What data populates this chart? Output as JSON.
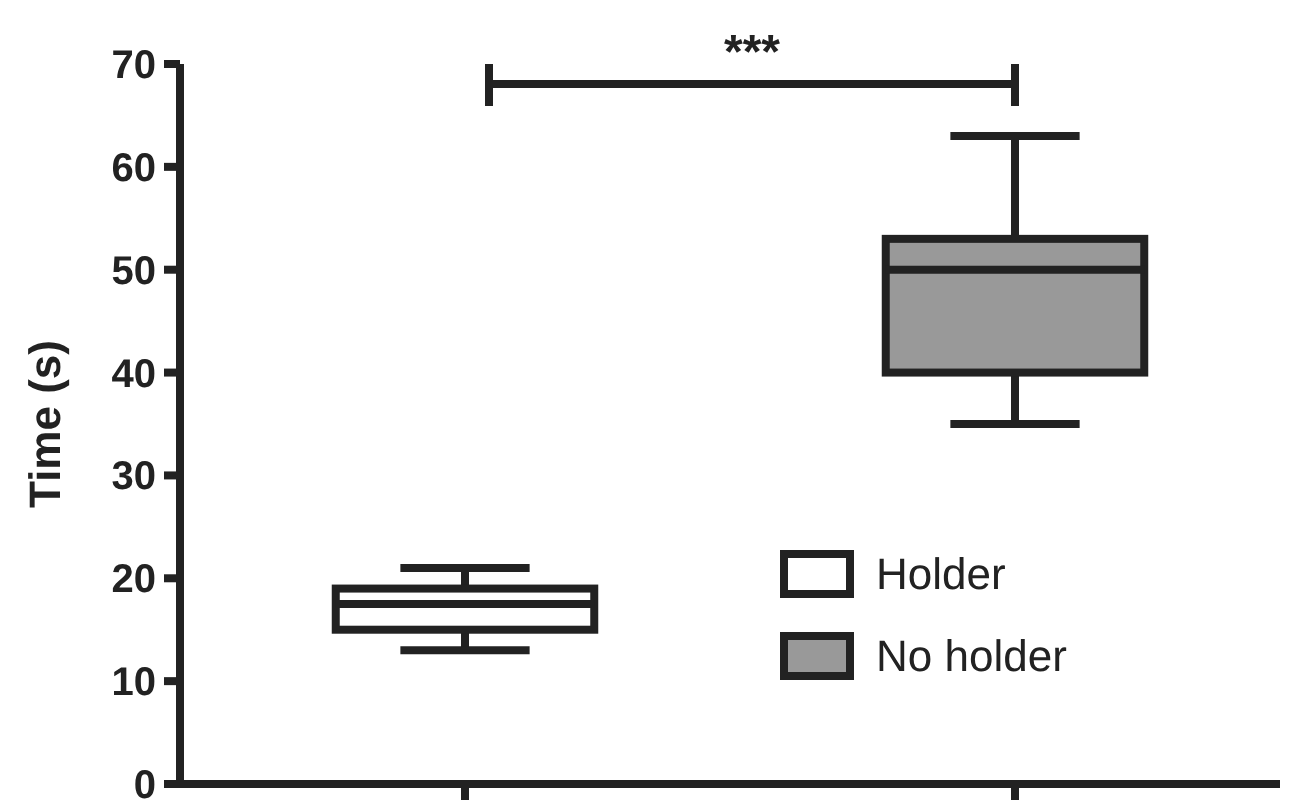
{
  "chart_data": {
    "type": "box",
    "ylabel": "Time (s)",
    "categories": [
      null,
      null
    ],
    "ylim": [
      0,
      70
    ],
    "yticks": [
      0,
      10,
      20,
      30,
      40,
      50,
      60,
      70
    ],
    "tick_labels": "y",
    "legend": "bottom right",
    "annotations": [
      "***"
    ],
    "series": [
      {
        "name": "Holder",
        "color": "#ffffff",
        "boxes": [
          {
            "low": 13,
            "q1": 15,
            "median": 17.5,
            "q3": 19,
            "high": 21
          },
          null
        ]
      },
      {
        "name": "No holder",
        "color": "#999999",
        "boxes": [
          null,
          {
            "low": 35,
            "q1": 40,
            "median": 50,
            "q3": 53,
            "high": 63
          }
        ]
      }
    ]
  }
}
